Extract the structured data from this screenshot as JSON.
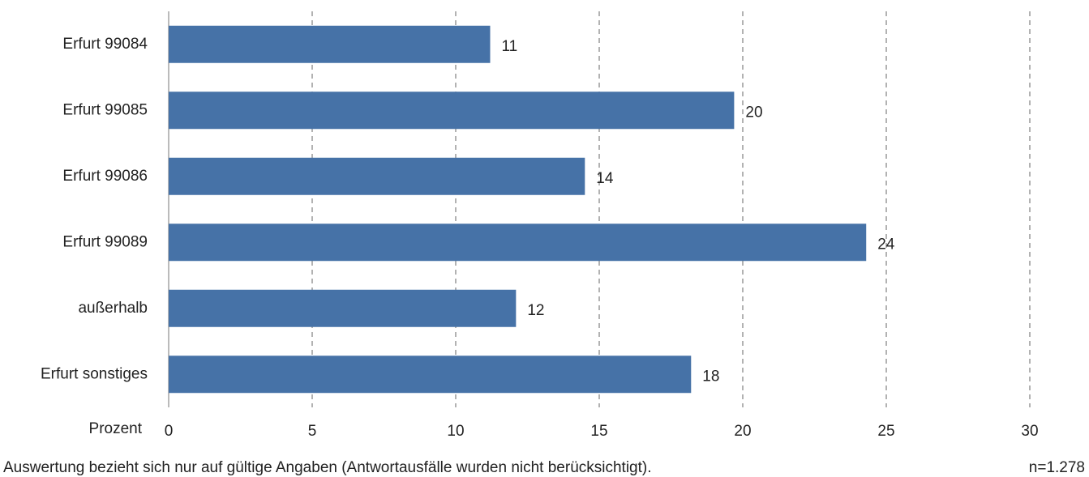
{
  "chart_data": {
    "type": "bar",
    "orientation": "horizontal",
    "categories": [
      "Erfurt 99084",
      "Erfurt 99085",
      "Erfurt 99086",
      "Erfurt 99089",
      "außerhalb",
      "Erfurt sonstiges"
    ],
    "values": [
      11.2,
      19.7,
      14.5,
      24.3,
      12.1,
      18.2
    ],
    "value_labels": [
      "11",
      "20",
      "14",
      "24",
      "12",
      "18"
    ],
    "color": "#4672a7",
    "x_label": "Prozent",
    "xlim": [
      0,
      30
    ],
    "xticks": [
      0,
      5,
      10,
      15,
      20,
      25,
      30
    ],
    "grid": true,
    "footnote": "Auswertung bezieht sich nur auf gültige Angaben (Antwortausfälle wurden nicht berücksichtigt).",
    "sample_size": "n=1.278"
  }
}
